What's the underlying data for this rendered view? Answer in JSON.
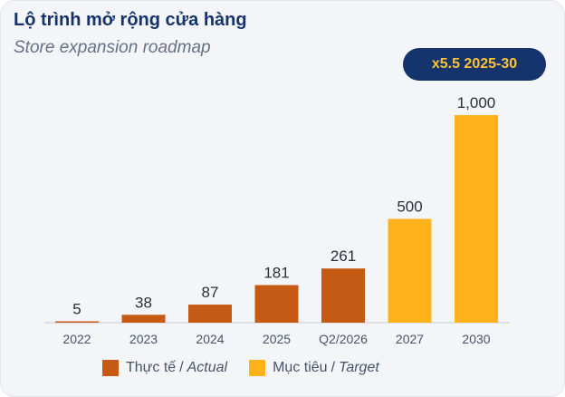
{
  "title": "Lộ trình mở rộng cửa hàng",
  "subtitle": "Store expansion roadmap",
  "badge": "x5.5 2025-30",
  "colors": {
    "actual": "#c55a14",
    "target": "#ffb21a",
    "title": "#14346b",
    "badge_bg": "#14346b",
    "badge_text": "#ffc23a"
  },
  "legend": {
    "actual_vi": "Thực tế",
    "actual_en": "Actual",
    "target_vi": "Mục tiêu",
    "target_en": "Target",
    "separator": "/"
  },
  "chart_data": {
    "type": "bar",
    "categories": [
      "2022",
      "2023",
      "2024",
      "2025",
      "Q2/2026",
      "2027",
      "2030"
    ],
    "values": [
      5,
      38,
      87,
      181,
      261,
      500,
      1000
    ],
    "value_labels": [
      "5",
      "38",
      "87",
      "181",
      "261",
      "500",
      "1,000"
    ],
    "status": [
      "actual",
      "actual",
      "actual",
      "actual",
      "actual",
      "target",
      "target"
    ],
    "ylim": [
      0,
      1000
    ],
    "grid": false,
    "legend_position": "bottom"
  }
}
